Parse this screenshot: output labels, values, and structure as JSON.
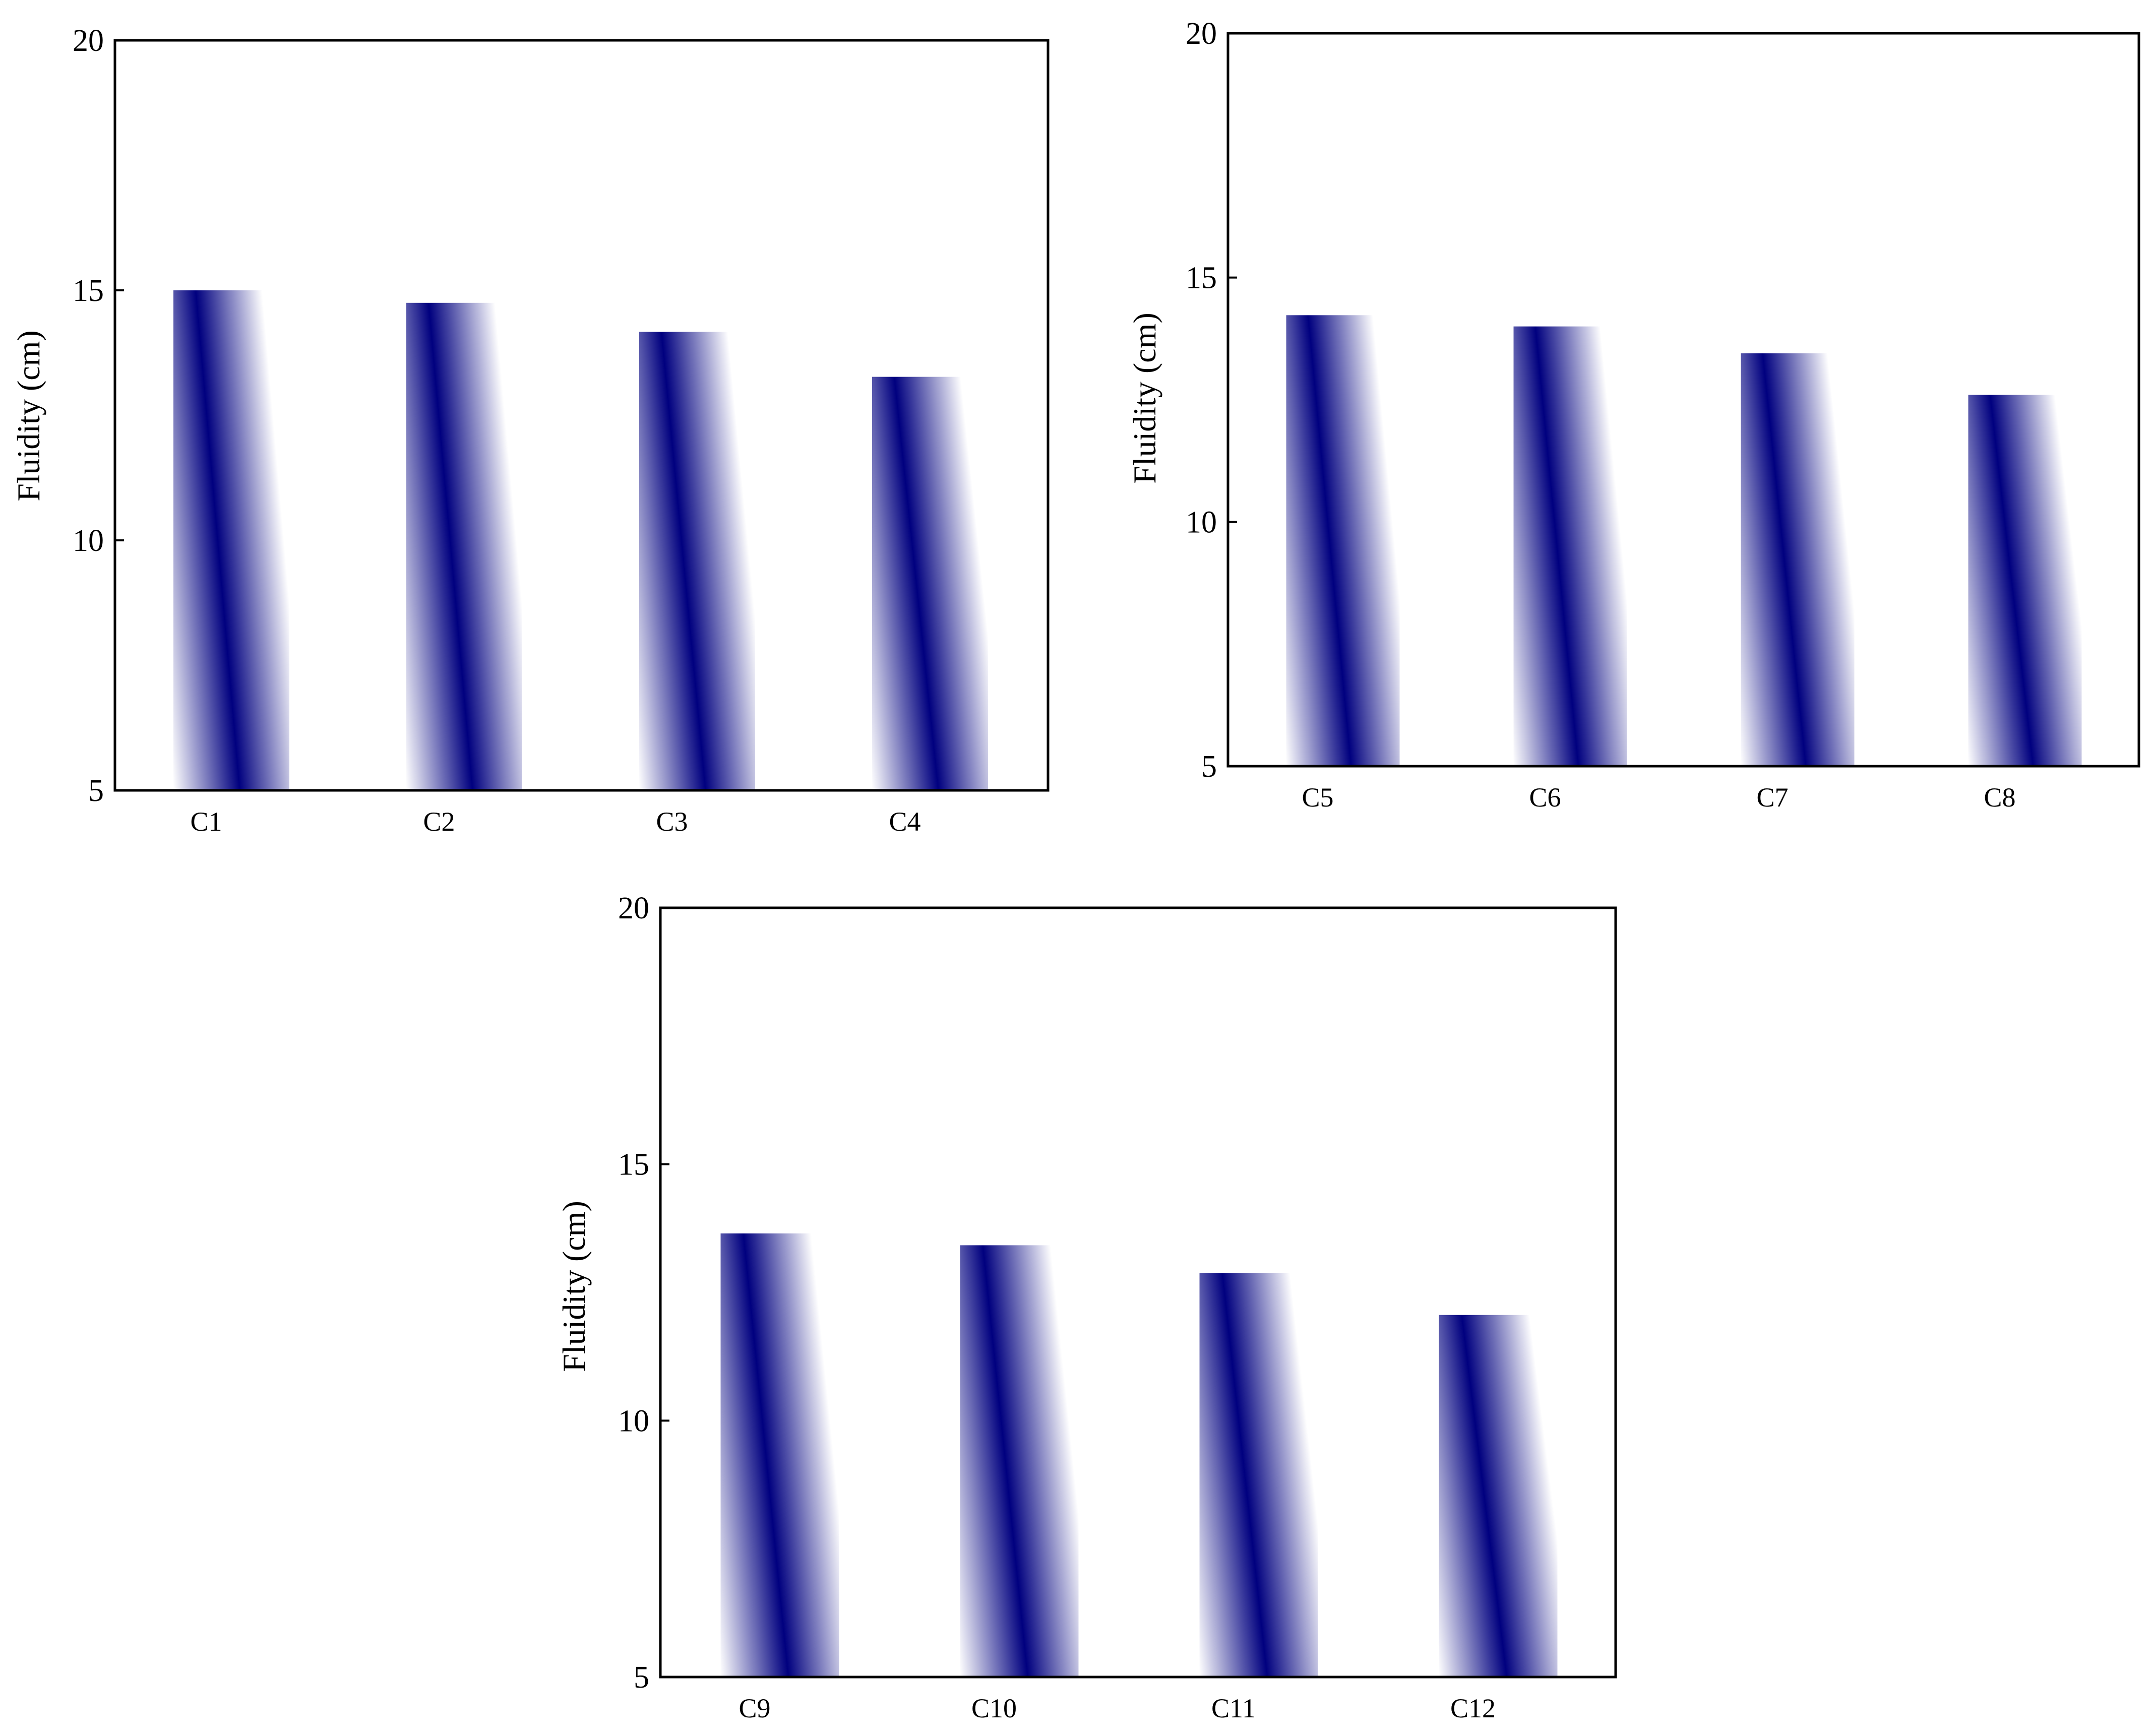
{
  "colors": {
    "bar_primary": "#00007f",
    "bar_fade": "#ffffff",
    "axis": "#000000"
  },
  "chart_data": [
    {
      "type": "bar",
      "title": "",
      "xlabel": "",
      "ylabel": "Fluidity (cm)",
      "ylim": [
        5,
        20
      ],
      "yticks": [
        5,
        10,
        15,
        20
      ],
      "categories": [
        "C1",
        "C2",
        "C3",
        "C4"
      ],
      "values": [
        15.0,
        14.75,
        14.17,
        13.27
      ],
      "grid": false,
      "legend": "none"
    },
    {
      "type": "bar",
      "title": "",
      "xlabel": "",
      "ylabel": "Fluidity (cm)",
      "ylim": [
        5,
        20
      ],
      "yticks": [
        5,
        10,
        15,
        20
      ],
      "categories": [
        "C5",
        "C6",
        "C7",
        "C8"
      ],
      "values": [
        14.23,
        14.0,
        13.45,
        12.6
      ],
      "grid": false,
      "legend": "none"
    },
    {
      "type": "bar",
      "title": "",
      "xlabel": "",
      "ylabel": "Fluidity (cm)",
      "ylim": [
        5,
        20
      ],
      "yticks": [
        5,
        10,
        15,
        20
      ],
      "categories": [
        "C9",
        "C10",
        "C11",
        "C12"
      ],
      "values": [
        13.65,
        13.42,
        12.88,
        12.06
      ],
      "grid": false,
      "legend": "none"
    }
  ]
}
